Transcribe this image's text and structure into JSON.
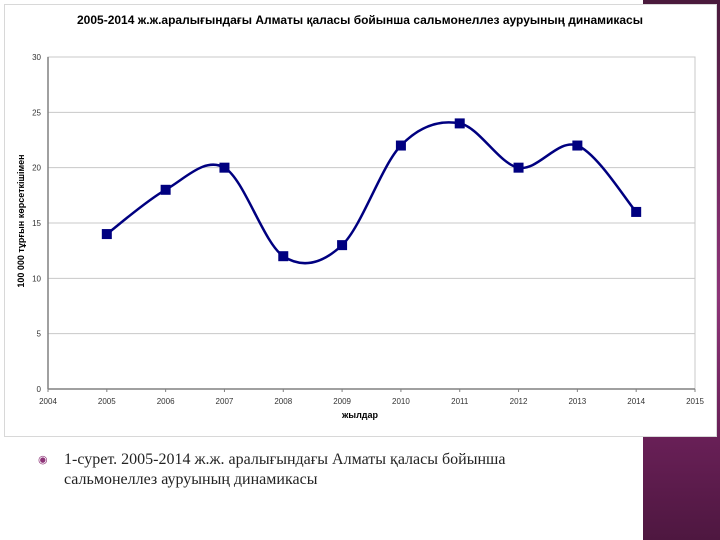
{
  "slide": {
    "accent_color": "#8e3478",
    "caption": {
      "bullet_icon": "circled-dot",
      "text": "1-сурет. 2005-2014 ж.ж. аралығындағы Алматы қаласы бойынша сальмонеллез ауруының динамикасы"
    }
  },
  "chart": {
    "title": "2005-2014 ж.ж.аралығындағы Алматы қаласы бойынша сальмонеллез ауруының динамикасы",
    "ylabel": "100 000 тұрғын көрсеткішімен",
    "xlabel": "жылдар"
  },
  "chart_data": {
    "type": "line",
    "title": "2005-2014 ж.ж.аралығындағы Алматы қаласы бойынша сальмонеллез ауруының динамикасы",
    "xlabel": "жылдар",
    "ylabel": "100 000 тұрғын көрсеткішімен",
    "x": [
      2005,
      2006,
      2007,
      2008,
      2009,
      2010,
      2011,
      2012,
      2013,
      2014
    ],
    "series": [
      {
        "name": "Сальмонеллез",
        "values": [
          14,
          18,
          20,
          12,
          13,
          22,
          24,
          20,
          22,
          16
        ],
        "color": "#000080",
        "marker": "square",
        "smoothed": true
      }
    ],
    "xlim": [
      2004,
      2015
    ],
    "ylim": [
      0,
      30
    ],
    "x_ticks": [
      "2004",
      "2005",
      "2006",
      "2007",
      "2008",
      "2009",
      "2010",
      "2011",
      "2012",
      "2013",
      "2014",
      "2015"
    ],
    "y_ticks": [
      "0",
      "5",
      "10",
      "15",
      "20",
      "25",
      "30"
    ],
    "grid": "horizontal",
    "legend": "none"
  }
}
